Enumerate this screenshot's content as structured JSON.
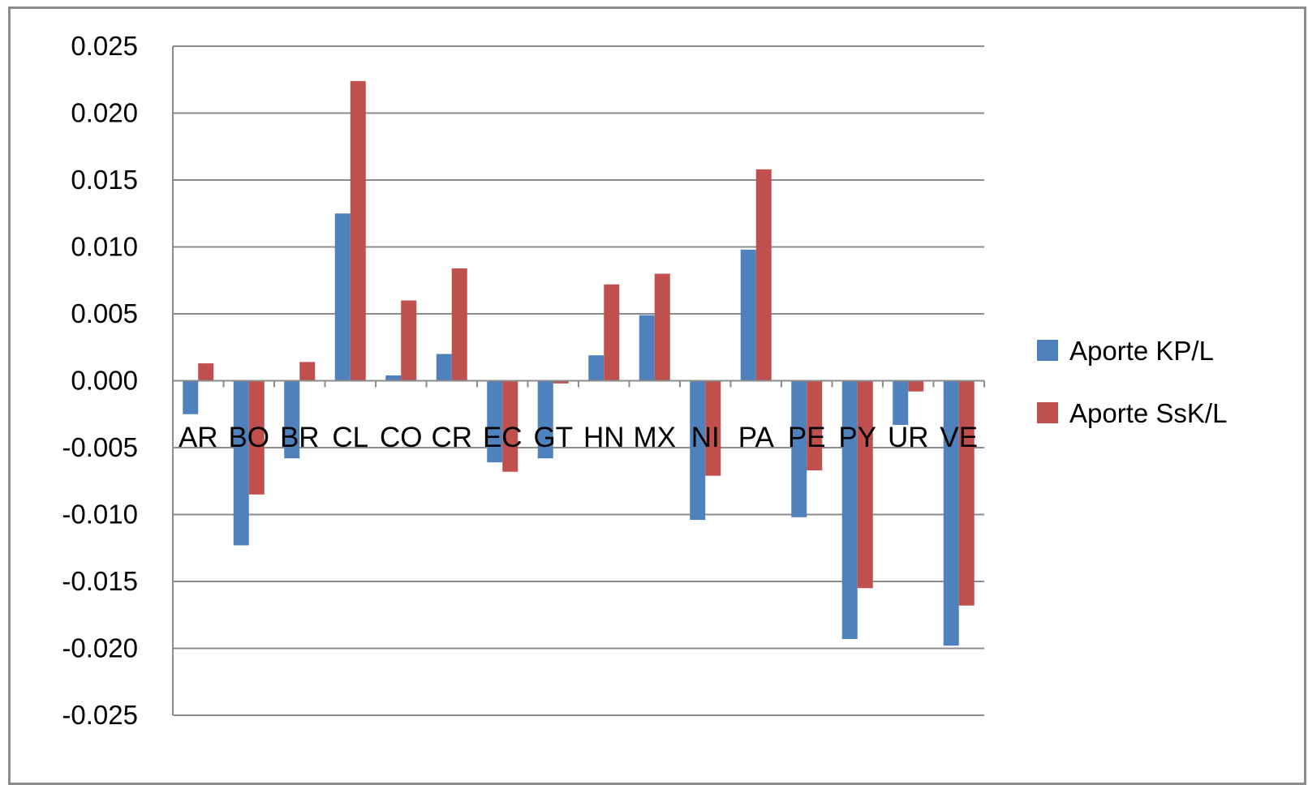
{
  "chart_data": {
    "type": "bar",
    "title": "",
    "xlabel": "",
    "ylabel": "",
    "categories": [
      "AR",
      "BO",
      "BR",
      "CL",
      "CO",
      "CR",
      "EC",
      "GT",
      "HN",
      "MX",
      "NI",
      "PA",
      "PE",
      "PY",
      "UR",
      "VE"
    ],
    "series": [
      {
        "name": "Aporte KP/L",
        "color": "#4f81bd",
        "values": [
          -0.0025,
          -0.0123,
          -0.0058,
          0.0125,
          0.0004,
          0.002,
          -0.0061,
          -0.0058,
          0.0019,
          0.0049,
          -0.0104,
          0.0098,
          -0.0102,
          -0.0193,
          -0.0033,
          -0.0198
        ]
      },
      {
        "name": "Aporte SsK/L",
        "color": "#c0504d",
        "values": [
          0.0013,
          -0.0085,
          0.0014,
          0.0224,
          0.006,
          0.0084,
          -0.0068,
          -0.0002,
          0.0072,
          0.008,
          -0.0071,
          0.0158,
          -0.0067,
          -0.0155,
          -0.0008,
          -0.0168
        ]
      }
    ],
    "ylim": [
      -0.025,
      0.025
    ],
    "yticks": [
      "0.025",
      "0.020",
      "0.015",
      "0.010",
      "0.005",
      "0.000",
      "-0.005",
      "-0.010",
      "-0.015",
      "-0.020",
      "-0.025"
    ],
    "ytick_values": [
      0.025,
      0.02,
      0.015,
      0.01,
      0.005,
      0.0,
      -0.005,
      -0.01,
      -0.015,
      -0.02,
      -0.025
    ],
    "grid": true,
    "legend_position": "right",
    "gridline_color": "#8c8c8c"
  }
}
